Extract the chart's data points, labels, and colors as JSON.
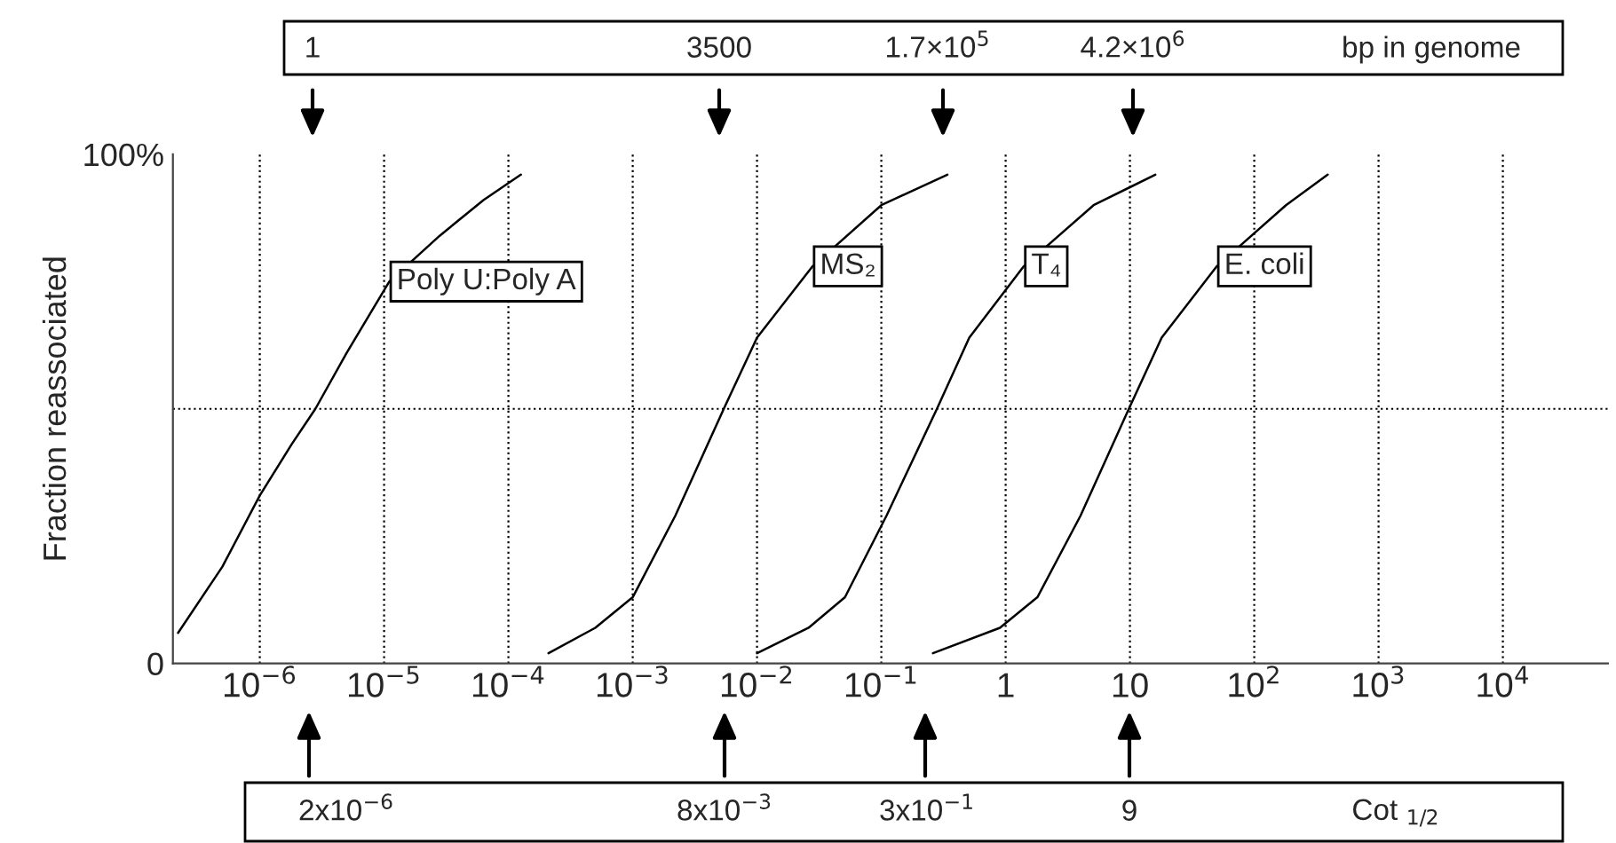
{
  "chart_data": {
    "type": "line",
    "ylabel": "Fraction reassociated",
    "series": [
      {
        "name": "Poly U:Poly A",
        "color": "#000000",
        "x": [
          2.2e-07,
          5e-07,
          1e-06,
          1.8e-06,
          2.8e-06,
          5e-06,
          1.1e-05,
          2.8e-05,
          6.3e-05,
          0.000126
        ],
        "values": [
          6,
          19,
          33,
          43,
          50,
          61,
          75,
          84,
          91,
          96
        ]
      },
      {
        "name": "MS₂",
        "color": "#000000",
        "x": [
          0.00021,
          0.0005,
          0.001,
          0.0022,
          0.0054,
          0.01,
          0.028,
          0.1,
          0.34
        ],
        "values": [
          2,
          7,
          13,
          29,
          50,
          64,
          78,
          90,
          96
        ]
      },
      {
        "name": "T₄",
        "color": "#000000",
        "x": [
          0.01,
          0.026,
          0.051,
          0.11,
          0.28,
          0.51,
          1.4,
          5.1,
          16
        ],
        "values": [
          2,
          7,
          13,
          29,
          50,
          64,
          78,
          90,
          96
        ]
      },
      {
        "name": "E. coli",
        "color": "#000000",
        "x": [
          0.26,
          0.9,
          1.8,
          4,
          9.8,
          18,
          50,
          180,
          390
        ],
        "values": [
          2,
          7,
          13,
          29,
          50,
          64,
          78,
          90,
          96
        ]
      }
    ],
    "log": "x",
    "xlim": [
      2e-07,
      70000.0
    ],
    "xticks": [
      {
        "value": 1e-06,
        "label": "10$^{−6}$"
      },
      {
        "value": 1e-05,
        "label": "10$^{−5}$"
      },
      {
        "value": 0.0001,
        "label": "10$^{−4}$"
      },
      {
        "value": 0.001,
        "label": "10$^{−3}$"
      },
      {
        "value": 0.01,
        "label": "10$^{−2}$"
      },
      {
        "value": 0.1,
        "label": "10$^{−1}$"
      },
      1,
      10,
      {
        "value": 100,
        "label": "10$^{2}$"
      },
      {
        "value": 1000,
        "label": "10$^{3}$"
      },
      {
        "value": 10000,
        "label": "10$^{4}$"
      }
    ],
    "ylim": [
      0,
      100
    ],
    "yticks": [
      0,
      {
        "value": 100,
        "label": "100%"
      }
    ],
    "grid": "x",
    "ref_lines": [
      {
        "axis": "y",
        "value": 50,
        "line_style": "dotted",
        "color": "#000000"
      }
    ],
    "line_style": "solid",
    "annotations": [
      "1",
      "3500",
      "1.7×10$^{5}$",
      "4.2×10$^{6}$",
      "bp in genome",
      "2x10$^{−6}$",
      "8x10$^{−3}$",
      "3x10$^{−1}$",
      "9",
      "Cot $_{1/2}$"
    ]
  }
}
